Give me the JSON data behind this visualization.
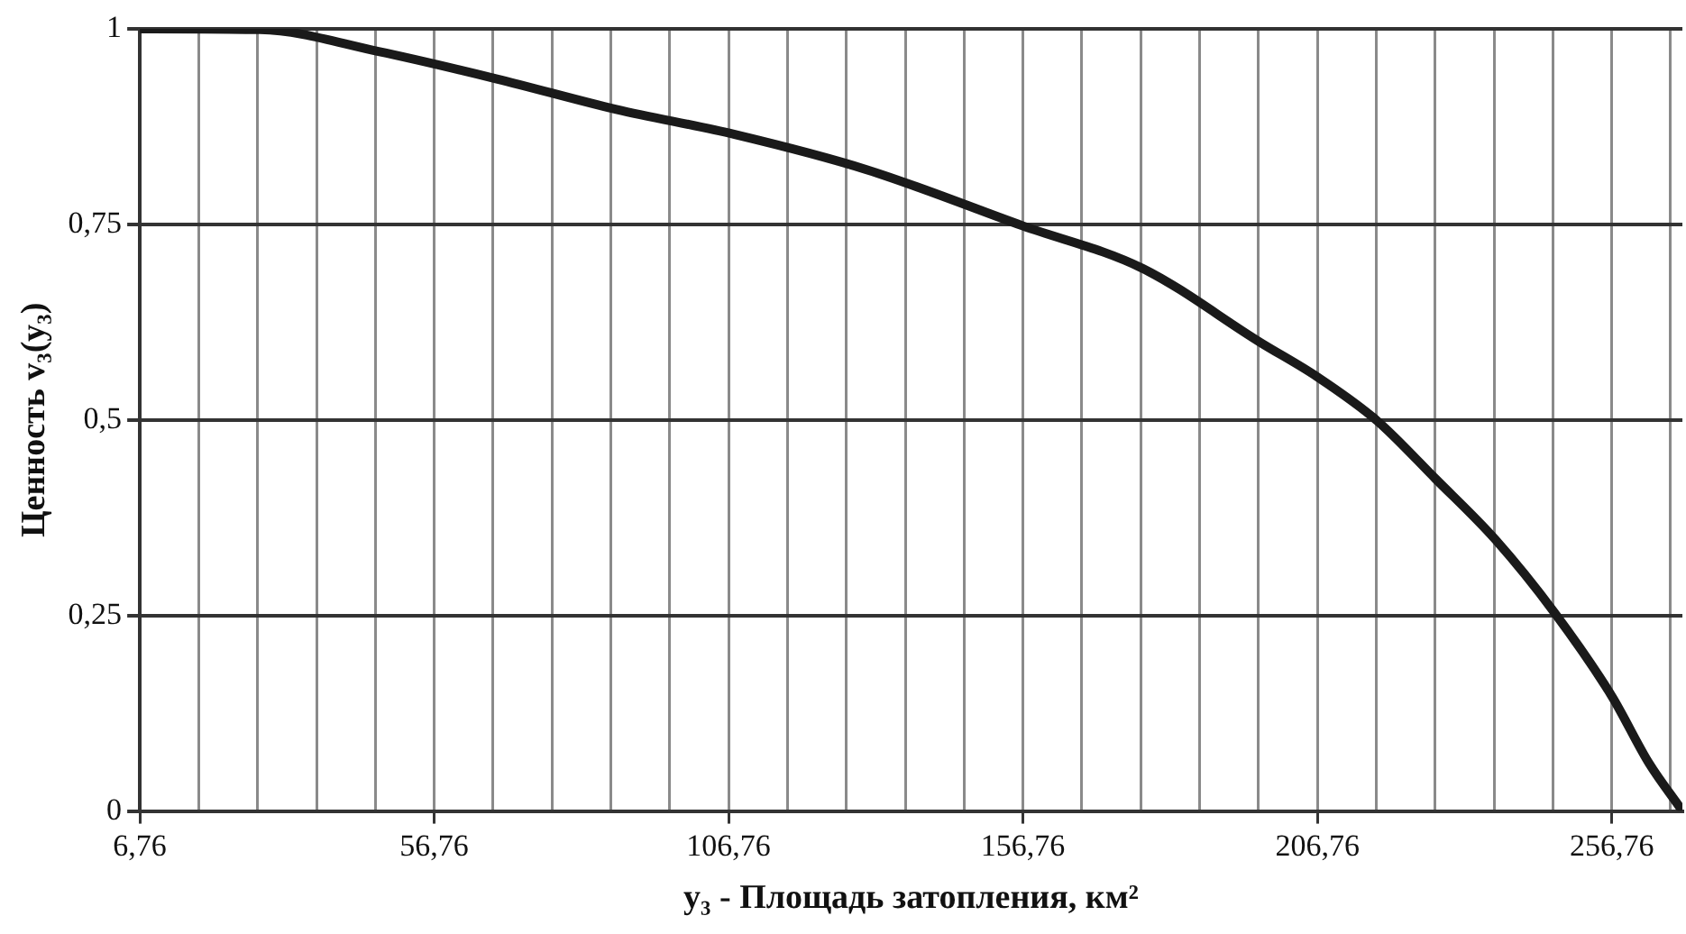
{
  "chart_data": {
    "type": "line",
    "xlabel": "y₃ - Площадь затопления, км²",
    "ylabel": "Ценность v₃(y₃)",
    "x": [
      6.76,
      27.2,
      47.3,
      67.4,
      87.7,
      107.8,
      130.2,
      156.76,
      177.0,
      197.1,
      206.76,
      216.9,
      226.8,
      237.0,
      247.0,
      256.76,
      263.1,
      268.3
    ],
    "series": [
      {
        "color": "#1a1a1a",
        "values": [
          1.0,
          0.999,
          0.971,
          0.936,
          0.897,
          0.865,
          0.82,
          0.748,
          0.694,
          0.599,
          0.555,
          0.499,
          0.425,
          0.347,
          0.254,
          0.147,
          0.061,
          0.005
        ]
      }
    ],
    "xlim": [
      6.76,
      268.76
    ],
    "xticks": [
      {
        "value": 6.76,
        "label": "6,76"
      },
      {
        "value": 16.76,
        "label": null
      },
      {
        "value": 26.76,
        "label": null
      },
      {
        "value": 36.76,
        "label": null
      },
      {
        "value": 46.76,
        "label": null
      },
      {
        "value": 56.76,
        "label": "56,76"
      },
      {
        "value": 66.76,
        "label": null
      },
      {
        "value": 76.76,
        "label": null
      },
      {
        "value": 86.76,
        "label": null
      },
      {
        "value": 96.76,
        "label": null
      },
      {
        "value": 106.76,
        "label": "106,76"
      },
      {
        "value": 116.76,
        "label": null
      },
      {
        "value": 126.76,
        "label": null
      },
      {
        "value": 136.76,
        "label": null
      },
      {
        "value": 146.76,
        "label": null
      },
      {
        "value": 156.76,
        "label": "156,76"
      },
      {
        "value": 166.76,
        "label": null
      },
      {
        "value": 176.76,
        "label": null
      },
      {
        "value": 186.76,
        "label": null
      },
      {
        "value": 196.76,
        "label": null
      },
      {
        "value": 206.76,
        "label": "206,76"
      },
      {
        "value": 216.76,
        "label": null
      },
      {
        "value": 226.76,
        "label": null
      },
      {
        "value": 236.76,
        "label": null
      },
      {
        "value": 246.76,
        "label": null
      },
      {
        "value": 256.76,
        "label": "256,76"
      },
      {
        "value": 266.76,
        "label": null
      }
    ],
    "ylim": [
      0,
      1
    ],
    "yticks": [
      0,
      {
        "value": 0.25,
        "label": "0,25"
      },
      {
        "value": 0.5,
        "label": "0,5"
      },
      {
        "value": 0.75,
        "label": "0,75"
      },
      1
    ],
    "grid": true,
    "legend": false,
    "marker": "none",
    "line_style": "solid"
  }
}
